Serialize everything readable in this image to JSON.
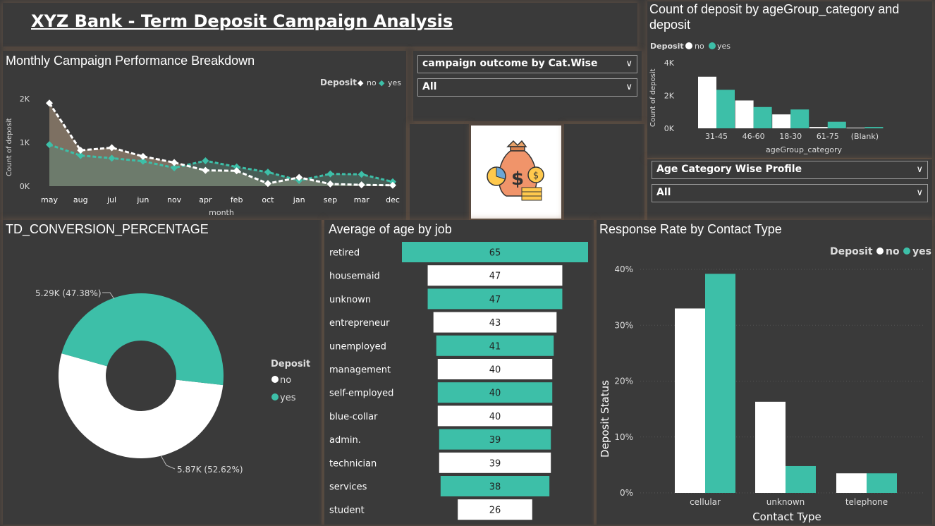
{
  "header": {
    "title": "XYZ Bank - Term Deposit Campaign Analysis"
  },
  "colors": {
    "no": "#ffffff",
    "yes": "#3dbfa8",
    "bg": "#3a3a3a"
  },
  "monthly": {
    "title": "Monthly Campaign Performance Breakdown",
    "legend_title": "Deposit",
    "legend_no": "no",
    "legend_yes": "yes",
    "chart_data": {
      "type": "line",
      "categories": [
        "may",
        "aug",
        "jul",
        "jun",
        "nov",
        "apr",
        "feb",
        "oct",
        "jan",
        "sep",
        "mar",
        "dec"
      ],
      "series": [
        {
          "name": "no",
          "values": [
            1900,
            820,
            880,
            680,
            540,
            360,
            350,
            60,
            200,
            50,
            30,
            20
          ]
        },
        {
          "name": "yes",
          "values": [
            950,
            700,
            640,
            570,
            420,
            580,
            440,
            320,
            130,
            280,
            270,
            100
          ]
        }
      ],
      "xlabel": "month",
      "ylabel": "Count of deposit",
      "yticks": [
        "0K",
        "1K",
        "2K"
      ],
      "ylim": [
        0,
        2000
      ]
    }
  },
  "slicer_campaign": {
    "label": "campaign outcome by Cat.Wise",
    "value": "All"
  },
  "age_group": {
    "title": "Count of deposit by ageGroup_category and deposit",
    "legend_title": "Deposit",
    "legend_no": "no",
    "legend_yes": "yes",
    "chart_data": {
      "type": "bar",
      "categories": [
        "31-45",
        "46-60",
        "18-30",
        "61-75",
        "(Blank)"
      ],
      "series": [
        {
          "name": "no",
          "values": [
            3150,
            1700,
            850,
            80,
            40
          ]
        },
        {
          "name": "yes",
          "values": [
            2350,
            1300,
            1150,
            400,
            80
          ]
        }
      ],
      "xlabel": "ageGroup_category",
      "ylabel": "Count of deposit",
      "yticks": [
        "0K",
        "2K",
        "4K"
      ],
      "ylim": [
        0,
        4000
      ]
    }
  },
  "slicer_age": {
    "label": "Age Category Wise Profile",
    "value": "All"
  },
  "conversion": {
    "title": "TD_CONVERSION_PERCENTAGE",
    "legend_title": "Deposit",
    "legend_no": "no",
    "legend_yes": "yes",
    "chart_data": {
      "type": "pie",
      "categories": [
        "no",
        "yes"
      ],
      "values": [
        5870,
        5290
      ],
      "labels": [
        "5.87K (52.62%)",
        "5.29K (47.38%)"
      ]
    }
  },
  "age_job": {
    "title": "Average of age by job",
    "chart_data": {
      "type": "bar",
      "categories": [
        "retired",
        "housemaid",
        "unknown",
        "entrepreneur",
        "unemployed",
        "management",
        "self-employed",
        "blue-collar",
        "admin.",
        "technician",
        "services",
        "student"
      ],
      "values": [
        65,
        47,
        47,
        43,
        41,
        40,
        40,
        40,
        39,
        39,
        38,
        26
      ]
    }
  },
  "contact": {
    "title": "Response Rate by Contact Type",
    "legend_title": "Deposit",
    "legend_no": "no",
    "legend_yes": "yes",
    "chart_data": {
      "type": "bar",
      "categories": [
        "cellular",
        "unknown",
        "telephone"
      ],
      "series": [
        {
          "name": "no",
          "values": [
            33,
            16.3,
            3.5
          ]
        },
        {
          "name": "yes",
          "values": [
            39.2,
            4.8,
            3.5
          ]
        }
      ],
      "xlabel": "Contact Type",
      "ylabel": "Deposit Status",
      "yticks": [
        "0%",
        "10%",
        "20%",
        "30%",
        "40%"
      ],
      "ylim": [
        0,
        40
      ]
    }
  }
}
